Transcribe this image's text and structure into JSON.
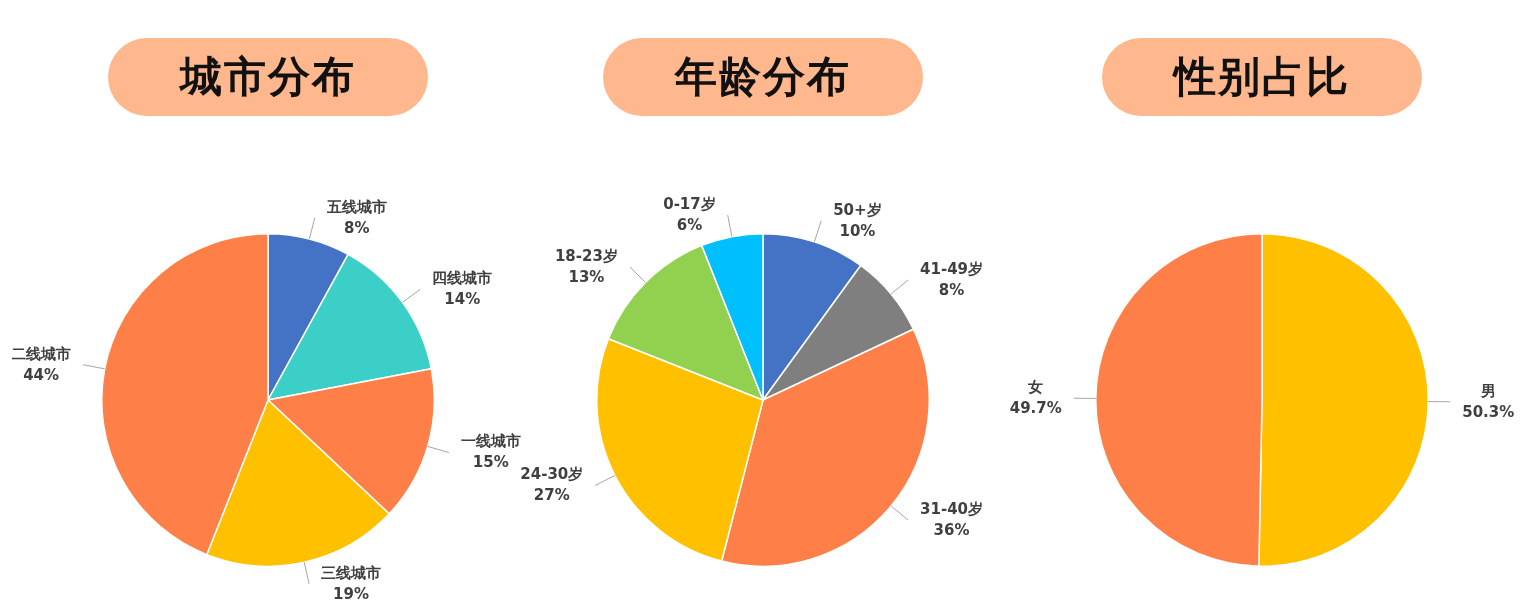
{
  "chart_data": [
    {
      "type": "pie",
      "title": "城市分布",
      "categories": [
        "五线城市",
        "四线城市",
        "一线城市",
        "三线城市",
        "二线城市"
      ],
      "values": [
        8,
        14,
        15,
        19,
        44
      ],
      "value_labels": [
        "8%",
        "14%",
        "15%",
        "19%",
        "44%"
      ],
      "colors": [
        "#4472c4",
        "#3ccfc8",
        "#ff7f48",
        "#ffc000",
        "#ff7f48"
      ],
      "legend": false
    },
    {
      "type": "pie",
      "title": "年龄分布",
      "categories": [
        "50+岁",
        "41-49岁",
        "31-40岁",
        "24-30岁",
        "18-23岁",
        "0-17岁"
      ],
      "values": [
        10,
        8,
        36,
        27,
        13,
        6
      ],
      "value_labels": [
        "10%",
        "8%",
        "36%",
        "27%",
        "13%",
        "6%"
      ],
      "colors": [
        "#4472c4",
        "#7f7f7f",
        "#ff7f48",
        "#ffc000",
        "#92d050",
        "#00bfff"
      ],
      "legend": false
    },
    {
      "type": "pie",
      "title": "性别占比",
      "categories": [
        "男",
        "女"
      ],
      "values": [
        50.3,
        49.7
      ],
      "value_labels": [
        "50.3%",
        "49.7%"
      ],
      "colors": [
        "#ffc000",
        "#ff7f48"
      ],
      "legend": false
    }
  ]
}
